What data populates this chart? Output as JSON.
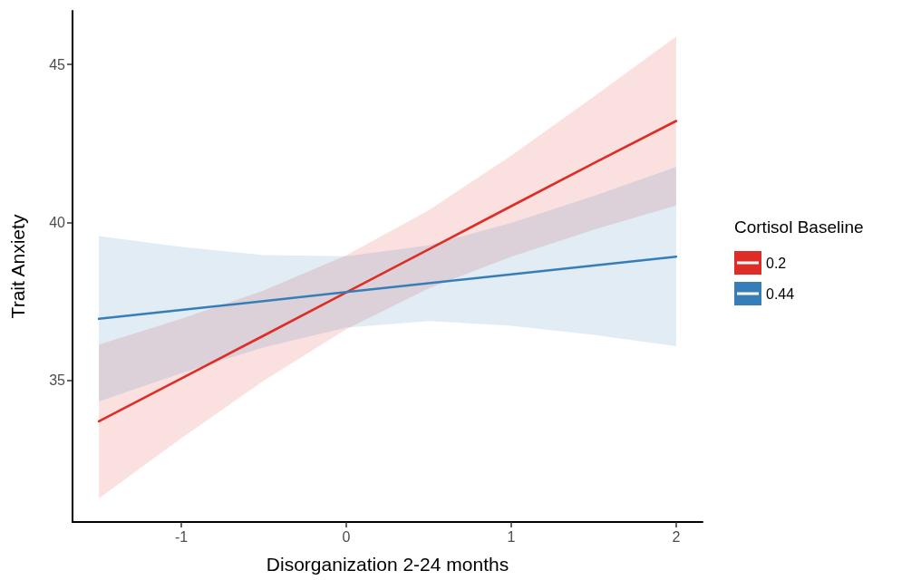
{
  "chart_data": {
    "type": "line",
    "xlabel": "Disorganization 2-24 months",
    "ylabel": "Trait Anxiety",
    "legend_title": "Cortisol Baseline",
    "xlim": [
      -1.66,
      2.16
    ],
    "xticks": [
      -1,
      0,
      1,
      2
    ],
    "ylim": [
      30.5,
      46.7
    ],
    "yticks": [
      35,
      40,
      45
    ],
    "grid": false,
    "legend": "right",
    "marker": "none",
    "line_style": "solid",
    "series": [
      {
        "name": "0.2",
        "color": "#de2d26",
        "x": [
          -1.5,
          -1,
          -0.5,
          0,
          0.5,
          1,
          1.5,
          2
        ],
        "values": [
          33.69,
          35.05,
          36.41,
          37.78,
          39.14,
          40.51,
          41.87,
          43.21
        ],
        "lower": [
          31.25,
          33.16,
          34.98,
          36.61,
          37.9,
          38.91,
          39.76,
          40.53
        ],
        "upper": [
          36.12,
          36.94,
          37.84,
          38.95,
          40.38,
          42.11,
          43.98,
          45.89
        ]
      },
      {
        "name": "0.44",
        "color": "#377eb8",
        "x": [
          -1.5,
          -1,
          -0.5,
          0,
          0.5,
          1,
          1.5,
          2
        ],
        "values": [
          36.94,
          37.22,
          37.5,
          37.79,
          38.07,
          38.35,
          38.63,
          38.91
        ],
        "lower": [
          34.32,
          35.22,
          36.04,
          36.66,
          36.87,
          36.72,
          36.43,
          36.07
        ],
        "upper": [
          39.56,
          39.22,
          38.96,
          38.92,
          39.27,
          39.98,
          40.83,
          41.75
        ]
      }
    ]
  }
}
